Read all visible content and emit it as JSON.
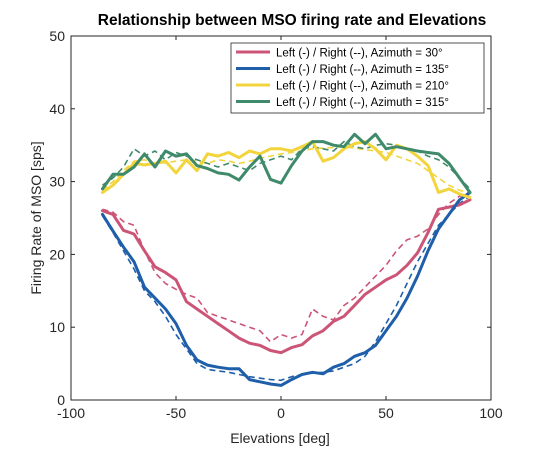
{
  "chart_data": {
    "type": "line",
    "title": "Relationship between MSO firing rate and Elevations",
    "xlabel": "Elevations [deg]",
    "ylabel": "Firing Rate of MSO [sps]",
    "xlim": [
      -100,
      100
    ],
    "ylim": [
      0,
      50
    ],
    "xticks": [
      -100,
      -50,
      0,
      50,
      100
    ],
    "yticks": [
      0,
      10,
      20,
      30,
      40,
      50
    ],
    "x_tick_labels": [
      "-100",
      "-50",
      "0",
      "50",
      "100"
    ],
    "y_tick_labels": [
      "0",
      "10",
      "20",
      "30",
      "40",
      "50"
    ],
    "grid": false,
    "legend_position": "top-right",
    "x": [
      -85,
      -80,
      -75,
      -70,
      -65,
      -60,
      -55,
      -50,
      -45,
      -40,
      -35,
      -30,
      -25,
      -20,
      -15,
      -10,
      -5,
      0,
      5,
      10,
      15,
      20,
      25,
      30,
      35,
      40,
      45,
      50,
      55,
      60,
      65,
      70,
      75,
      80,
      85,
      90
    ],
    "series": [
      {
        "name": "Left (-) / Right (--), Azimuth = 30°",
        "color": "#CC5577",
        "left": [
          26,
          25.5,
          23.3,
          22.8,
          20.5,
          18.3,
          17.5,
          16.5,
          13.5,
          12.5,
          11.5,
          10.5,
          9.5,
          8.5,
          7.8,
          7.5,
          6.8,
          6.5,
          7.2,
          7.6,
          8.8,
          9.5,
          10.8,
          11.5,
          13.0,
          14.5,
          15.5,
          16.5,
          17.2,
          18.5,
          20.2,
          23.0,
          26.2,
          26.5,
          26.8,
          27.5
        ],
        "right": [
          26.2,
          25.8,
          24.5,
          24.0,
          20.5,
          17.5,
          16.0,
          15.2,
          14.5,
          14.0,
          12.0,
          11.5,
          11.0,
          10.5,
          10.0,
          9.5,
          8.0,
          9.0,
          8.5,
          9.0,
          12.5,
          11.5,
          11.0,
          13.0,
          14.0,
          15.5,
          17.0,
          18.5,
          20.5,
          22.0,
          22.5,
          23.5,
          25.5,
          27.0,
          28.0,
          28.5
        ]
      },
      {
        "name": "Left (-) / Right (--), Azimuth = 135°",
        "color": "#1F5FAA",
        "left": [
          25.5,
          23.2,
          21.0,
          19.0,
          15.5,
          14.0,
          12.5,
          10.5,
          7.5,
          5.5,
          4.8,
          4.5,
          4.3,
          4.3,
          2.8,
          2.5,
          2.2,
          2.0,
          2.8,
          3.5,
          3.8,
          3.6,
          4.5,
          5.0,
          6.0,
          6.5,
          7.5,
          9.5,
          11.5,
          14.0,
          17.0,
          20.5,
          23.5,
          25.5,
          27.5,
          28.5
        ],
        "right": [
          25.3,
          23.0,
          20.5,
          18.0,
          15.0,
          13.5,
          11.5,
          9.0,
          7.0,
          5.0,
          4.2,
          4.0,
          3.8,
          3.5,
          3.2,
          3.0,
          2.8,
          2.7,
          3.2,
          3.5,
          3.7,
          3.8,
          4.0,
          4.5,
          5.0,
          6.0,
          8.0,
          10.5,
          13.0,
          16.0,
          19.0,
          21.5,
          24.0,
          25.5,
          27.0,
          28.0
        ]
      },
      {
        "name": "Left (-) / Right (--), Azimuth = 210°",
        "color": "#F2D43C",
        "left": [
          28.5,
          29.5,
          31.0,
          32.5,
          32.3,
          32.5,
          32.8,
          31.2,
          33.0,
          31.5,
          33.8,
          33.5,
          34.0,
          33.3,
          34.2,
          33.8,
          34.5,
          34.5,
          34.2,
          34.8,
          35.5,
          32.8,
          33.3,
          34.5,
          35.2,
          35.5,
          34.5,
          33.0,
          35.0,
          34.5,
          33.5,
          32.2,
          28.5,
          29.0,
          28.3,
          27.8
        ],
        "right": [
          28.8,
          30.0,
          31.5,
          32.8,
          33.0,
          32.5,
          32.6,
          32.8,
          33.0,
          32.8,
          32.5,
          33.0,
          32.8,
          32.5,
          32.8,
          33.2,
          33.5,
          33.8,
          34.0,
          34.2,
          34.5,
          34.6,
          34.7,
          34.8,
          34.6,
          34.4,
          34.2,
          34.0,
          33.5,
          33.0,
          32.5,
          31.5,
          30.5,
          29.5,
          28.8,
          28.5
        ]
      },
      {
        "name": "Left (-) / Right (--), Azimuth = 315°",
        "color": "#3F8A6A",
        "left": [
          29.0,
          31.0,
          31.0,
          32.0,
          33.8,
          32.0,
          34.2,
          33.5,
          33.8,
          32.2,
          31.8,
          31.2,
          31.0,
          30.2,
          32.0,
          33.5,
          30.3,
          29.8,
          32.2,
          34.2,
          35.5,
          35.5,
          35.0,
          34.8,
          36.5,
          35.2,
          36.5,
          34.5,
          34.8,
          34.5,
          34.2,
          34.0,
          33.8,
          32.5,
          30.5,
          28.5
        ],
        "right": [
          29.5,
          30.5,
          32.0,
          34.5,
          33.5,
          34.2,
          33.0,
          34.0,
          33.5,
          33.0,
          32.5,
          32.0,
          32.5,
          32.0,
          31.5,
          32.5,
          33.0,
          33.5,
          33.0,
          34.5,
          34.8,
          34.5,
          34.2,
          35.5,
          34.8,
          34.5,
          35.0,
          35.2,
          35.0,
          34.5,
          34.2,
          33.5,
          33.0,
          32.0,
          30.5,
          29.0
        ]
      }
    ]
  }
}
